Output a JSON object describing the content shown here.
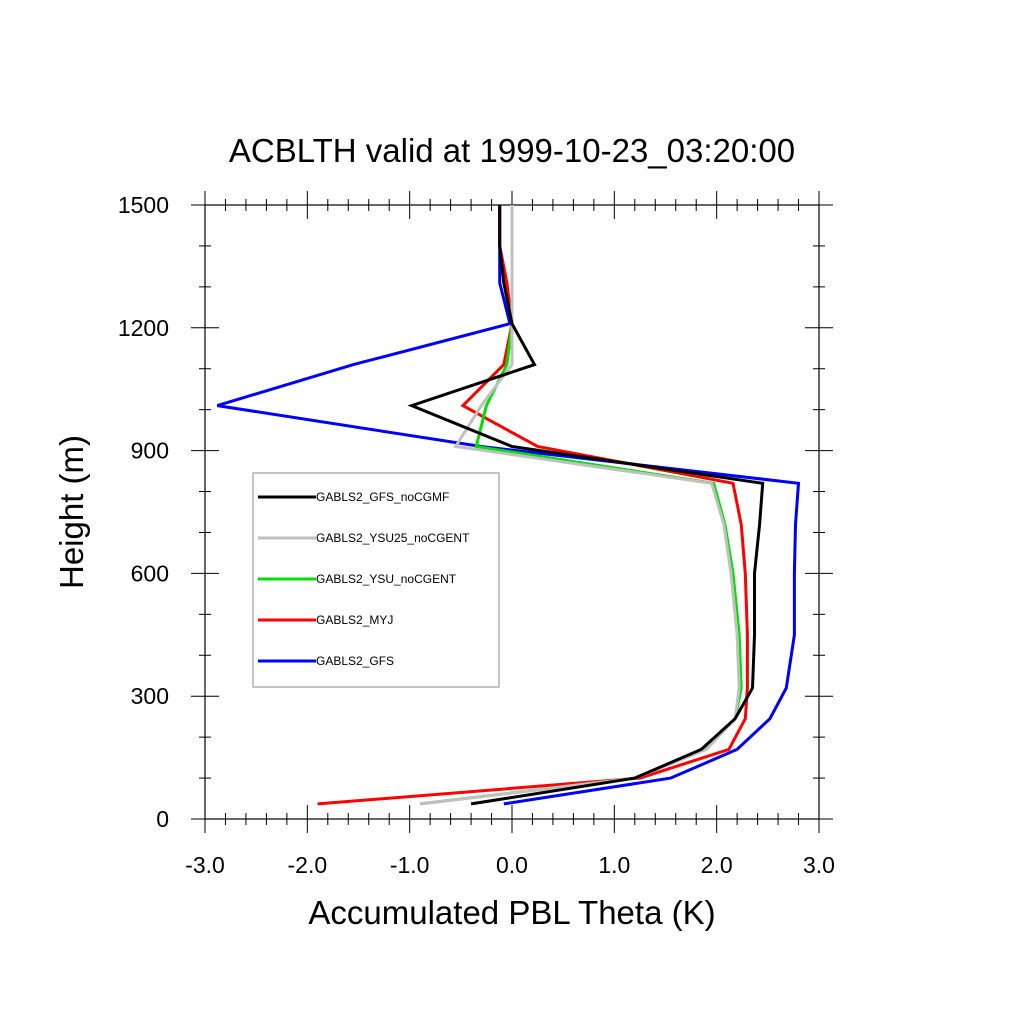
{
  "chart_data": {
    "type": "line",
    "title": "ACBLTH valid at 1999-10-23_03:20:00",
    "xlabel": "Accumulated PBL Theta (K)",
    "ylabel": "Height (m)",
    "xlim": [
      -3.0,
      3.0
    ],
    "ylim": [
      0,
      1500
    ],
    "x_ticks": [
      "-3.0",
      "-2.0",
      "-1.0",
      "0.0",
      "1.0",
      "2.0",
      "3.0"
    ],
    "y_ticks": [
      "0",
      "300",
      "600",
      "900",
      "1200",
      "1500"
    ],
    "x_tick_values": [
      -3,
      -2,
      -1,
      0,
      1,
      2,
      3
    ],
    "y_tick_values": [
      0,
      300,
      600,
      900,
      1200,
      1500
    ],
    "legend_position": "center-left",
    "grid": false,
    "series": [
      {
        "name": "GABLS2_GFS_noCGMF",
        "color": "#000000",
        "x": [
          -0.4,
          1.2,
          1.85,
          2.18,
          2.35,
          2.37,
          2.37,
          2.42,
          2.45,
          0.0,
          -0.98,
          0.22,
          0.0,
          -0.08,
          -0.12,
          -0.12
        ],
        "y": [
          37,
          100,
          170,
          245,
          320,
          450,
          600,
          720,
          820,
          910,
          1010,
          1110,
          1210,
          1310,
          1400,
          1500
        ]
      },
      {
        "name": "GABLS2_YSU25_noCGENT",
        "color": "#c0c0c0",
        "x": [
          -0.9,
          1.2,
          1.9,
          2.18,
          2.22,
          2.2,
          2.14,
          2.07,
          1.95,
          -0.55,
          -0.3,
          0.0,
          0.0,
          0.0,
          0.0,
          0.0
        ],
        "y": [
          37,
          100,
          170,
          245,
          320,
          450,
          600,
          720,
          820,
          910,
          1010,
          1110,
          1210,
          1310,
          1400,
          1500
        ]
      },
      {
        "name": "GABLS2_YSU_noCGENT",
        "color": "#00e000",
        "x": [
          -0.9,
          1.2,
          1.88,
          2.18,
          2.24,
          2.22,
          2.16,
          2.08,
          1.97,
          -0.35,
          -0.25,
          -0.05,
          0.0,
          0.0,
          0.0,
          0.0
        ],
        "y": [
          37,
          100,
          170,
          245,
          320,
          450,
          600,
          720,
          820,
          910,
          1010,
          1110,
          1210,
          1310,
          1400,
          1500
        ]
      },
      {
        "name": "GABLS2_MYJ",
        "color": "#ff0000",
        "x": [
          -1.9,
          1.25,
          2.12,
          2.28,
          2.3,
          2.3,
          2.28,
          2.24,
          2.16,
          0.25,
          -0.48,
          -0.08,
          0.0,
          -0.05,
          -0.12,
          -0.12
        ],
        "y": [
          37,
          100,
          170,
          245,
          320,
          450,
          600,
          720,
          820,
          910,
          1010,
          1110,
          1210,
          1310,
          1400,
          1500
        ]
      },
      {
        "name": "GABLS2_GFS",
        "color": "#0000ff",
        "x": [
          -0.08,
          1.55,
          2.2,
          2.52,
          2.68,
          2.76,
          2.76,
          2.77,
          2.8,
          -0.3,
          -2.88,
          -1.55,
          -0.02,
          -0.12,
          -0.12,
          -0.12
        ],
        "y": [
          37,
          100,
          170,
          245,
          320,
          450,
          600,
          720,
          820,
          910,
          1010,
          1110,
          1210,
          1310,
          1400,
          1500
        ]
      }
    ]
  }
}
